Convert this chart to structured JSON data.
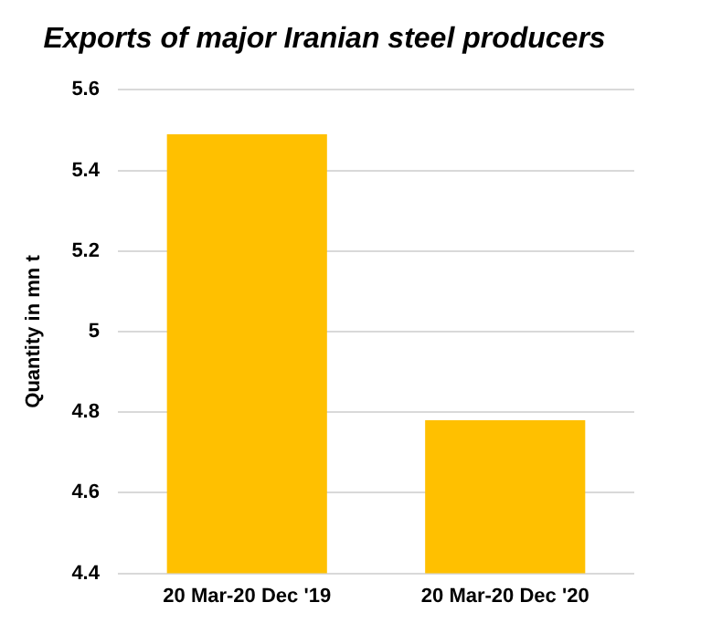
{
  "chart_data": {
    "type": "bar",
    "title": "Exports of major Iranian steel producers",
    "ylabel": "Quantity in mn t",
    "categories": [
      "20 Mar-20 Dec '19",
      "20 Mar-20 Dec '20"
    ],
    "values": [
      5.49,
      4.78
    ],
    "color": "#ffc000",
    "ylim": [
      4.4,
      5.6
    ],
    "yticks": [
      {
        "value": 4.4,
        "label": "4.4"
      },
      {
        "value": 4.6,
        "label": "4.6"
      },
      {
        "value": 4.8,
        "label": "4.8"
      },
      5,
      {
        "value": 5.2,
        "label": "5.2"
      },
      {
        "value": 5.4,
        "label": "5.4"
      },
      {
        "value": 5.6,
        "label": "5.6"
      }
    ],
    "grid": "y"
  }
}
